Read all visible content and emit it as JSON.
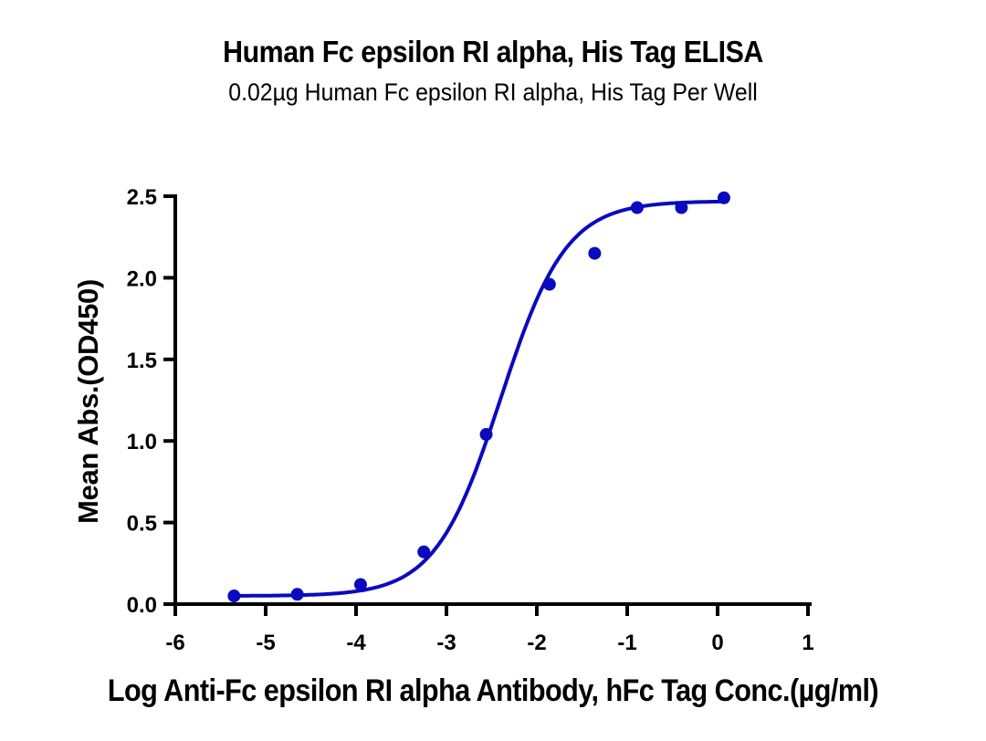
{
  "title": "Human Fc epsilon RI alpha, His Tag ELISA",
  "subtitle": "0.02µg Human Fc epsilon RI alpha, His Tag Per Well",
  "colors": {
    "series": "#0a0abf",
    "axis": "#000000",
    "background": "#ffffff"
  },
  "chart_data": {
    "type": "scatter",
    "title": "Human Fc epsilon RI alpha, His Tag ELISA",
    "subtitle": "0.02µg Human Fc epsilon RI alpha, His Tag Per Well",
    "xlabel": "Log Anti-Fc epsilon RI alpha Antibody, hFc Tag Conc.(µg/ml)",
    "ylabel": "Mean Abs.(OD450)",
    "xlim": [
      -6,
      1
    ],
    "ylim": [
      0,
      2.5
    ],
    "xticks": [
      "-6",
      "-5",
      "-4",
      "-3",
      "-2",
      "-1",
      "0",
      "1"
    ],
    "yticks": [
      "0.0",
      "0.5",
      "1.0",
      "1.5",
      "2.0",
      "2.5"
    ],
    "grid": false,
    "legend": "none",
    "series": [
      {
        "name": "Mean Abs.(OD450)",
        "x": [
          -5.35,
          -4.65,
          -3.95,
          -3.25,
          -2.56,
          -1.86,
          -1.36,
          -0.89,
          -0.4,
          0.07
        ],
        "y": [
          0.05,
          0.06,
          0.12,
          0.32,
          1.04,
          1.96,
          2.15,
          2.43,
          2.43,
          2.49
        ],
        "marker": "circle",
        "fit": {
          "model": "4PL",
          "bottom": 0.05,
          "top": 2.47,
          "logEC50": -2.4,
          "hill": 1.2
        }
      }
    ]
  }
}
